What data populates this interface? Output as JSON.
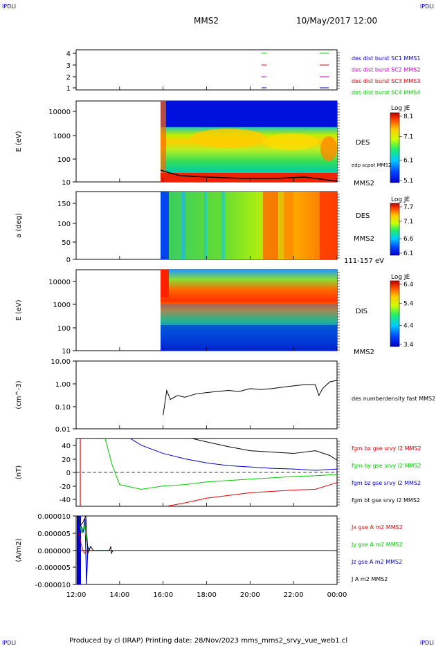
{
  "header": {
    "corner_tl": "IPDLI",
    "corner_tr": "IPDLI",
    "corner_bl": "IPDLI",
    "corner_br": "IPDLI",
    "spacecraft": "MMS2",
    "datetime": "10/May/2017 12:00"
  },
  "footer": {
    "text": "Produced by cl (IRAP)   Printing date: 28/Nov/2023   mms_mms2_srvy_vue_web1.cl"
  },
  "colors": {
    "mms1": "#0000cc",
    "mms2": "#cc00cc",
    "mms3": "#dd0000",
    "mms4": "#00cc00",
    "bx": "#dd0000",
    "by": "#00cc00",
    "bz": "#0000cc",
    "bt": "#000000"
  },
  "chart_data": [
    {
      "type": "line",
      "panel": "burst",
      "ylim": [
        0.5,
        4.5
      ],
      "yticks": [
        "4",
        "3",
        "2",
        "1"
      ],
      "legend": [
        {
          "label": "des dist burst SC1 MMS1",
          "color": "#0000cc"
        },
        {
          "label": "des dist burst SC2 MMS2",
          "color": "#cc00cc"
        },
        {
          "label": "des dist burst SC3 MMS3",
          "color": "#dd0000"
        },
        {
          "label": "des dist burst SC4 MMS4",
          "color": "#00cc00"
        }
      ]
    },
    {
      "type": "heatmap",
      "panel": "des_energy",
      "ylabel": "E (eV)",
      "yticks": [
        "10000",
        "1000",
        "100",
        "10"
      ],
      "ylim": [
        10,
        30000
      ],
      "scale": "log",
      "instrument": "DES",
      "spacecraft_label": "MMS2",
      "overlay_label": "edp scpot MMS2",
      "colorbar_title": "Log JE",
      "colorbar_ticks": [
        "8.1",
        "7.1",
        "6.1",
        "5.1"
      ]
    },
    {
      "type": "heatmap",
      "panel": "des_pitch",
      "ylabel": "a (deg)",
      "yticks": [
        "150",
        "100",
        "50",
        "0"
      ],
      "ylim": [
        0,
        180
      ],
      "instrument": "DES",
      "spacecraft_label": "MMS2",
      "energy_range": "111-157 eV",
      "colorbar_title": "Log JE",
      "colorbar_ticks": [
        "7.7",
        "7.1",
        "6.6",
        "6.1"
      ]
    },
    {
      "type": "heatmap",
      "panel": "dis_energy",
      "ylabel": "E (eV)",
      "yticks": [
        "10000",
        "1000",
        "100",
        "10"
      ],
      "ylim": [
        10,
        30000
      ],
      "scale": "log",
      "instrument": "DIS",
      "spacecraft_label": "MMS2",
      "colorbar_title": "Log JE",
      "colorbar_ticks": [
        "6.4",
        "5.4",
        "4.4",
        "3.4"
      ]
    },
    {
      "type": "line",
      "panel": "density",
      "ylabel": "(cm^-3)",
      "yticks": [
        "10.00",
        "1.00",
        "0.10",
        "0.01"
      ],
      "ylim": [
        0.01,
        10
      ],
      "scale": "log",
      "series": [
        {
          "name": "des numberdensity fast MMS2",
          "color": "#000000",
          "x": [
            "16:00",
            "16:10",
            "16:20",
            "16:40",
            "17:00",
            "17:30",
            "18:00",
            "18:30",
            "19:00",
            "19:30",
            "20:00",
            "20:30",
            "21:00",
            "21:30",
            "22:00",
            "22:30",
            "23:00",
            "23:10",
            "23:20",
            "23:40",
            "00:00"
          ],
          "values": [
            0.04,
            0.5,
            0.2,
            0.3,
            0.25,
            0.35,
            0.4,
            0.45,
            0.5,
            0.45,
            0.6,
            0.55,
            0.6,
            0.7,
            0.8,
            0.9,
            0.9,
            0.3,
            0.6,
            1.2,
            1.4
          ]
        }
      ]
    },
    {
      "type": "line",
      "panel": "magnetic",
      "ylabel": "(nT)",
      "yticks": [
        "40",
        "20",
        "0",
        "-20",
        "-40"
      ],
      "ylim": [
        -50,
        50
      ],
      "series": [
        {
          "name": "fgm bx gse srvy l2 MMS2",
          "color": "#dd0000",
          "x": [
            "16:10",
            "17:00",
            "18:00",
            "19:00",
            "20:00",
            "21:00",
            "22:00",
            "23:00",
            "00:00"
          ],
          "values": [
            -50,
            -45,
            -38,
            -34,
            -30,
            -28,
            -26,
            -25,
            -15
          ]
        },
        {
          "name": "fgm by gse srvy l2 MMS2",
          "color": "#00cc00",
          "x": [
            "13:20",
            "13:40",
            "14:00",
            "15:00",
            "16:00",
            "17:00",
            "18:00",
            "19:00",
            "20:00",
            "21:00",
            "22:00",
            "23:00",
            "00:00"
          ],
          "values": [
            50,
            10,
            -18,
            -25,
            -20,
            -18,
            -14,
            -12,
            -10,
            -8,
            -6,
            -5,
            -3
          ]
        },
        {
          "name": "fgm bz gse srvy l2 MMS2",
          "color": "#0000cc",
          "x": [
            "14:30",
            "15:00",
            "16:00",
            "17:00",
            "18:00",
            "19:00",
            "20:00",
            "21:00",
            "22:00",
            "23:00",
            "00:00"
          ],
          "values": [
            50,
            40,
            28,
            20,
            14,
            10,
            8,
            6,
            5,
            3,
            5
          ]
        },
        {
          "name": "fgm bt gse srvy l2 MMS2",
          "color": "#000000",
          "x": [
            "17:20",
            "18:00",
            "19:00",
            "20:00",
            "21:00",
            "22:00",
            "23:00",
            "23:40",
            "00:00"
          ],
          "values": [
            50,
            45,
            38,
            32,
            30,
            28,
            32,
            25,
            18
          ]
        }
      ]
    },
    {
      "type": "line",
      "panel": "current",
      "ylabel": "(A/m2)",
      "yticks": [
        "0.000010",
        "0.000005",
        "0.000000",
        "-0.000005",
        "-0.000010"
      ],
      "ylim": [
        -1e-05,
        1e-05
      ],
      "series": [
        {
          "name": "Jx gse A m2 MMS2",
          "color": "#dd0000"
        },
        {
          "name": "Jy gse A m2 MMS2",
          "color": "#00cc00"
        },
        {
          "name": "Jz gse A m2 MMS2",
          "color": "#0000cc"
        },
        {
          "name": "J A m2 MMS2",
          "color": "#000000"
        }
      ]
    }
  ],
  "time_axis": {
    "labels": [
      "12:00",
      "14:00",
      "16:00",
      "18:00",
      "20:00",
      "22:00",
      "00:00"
    ]
  }
}
